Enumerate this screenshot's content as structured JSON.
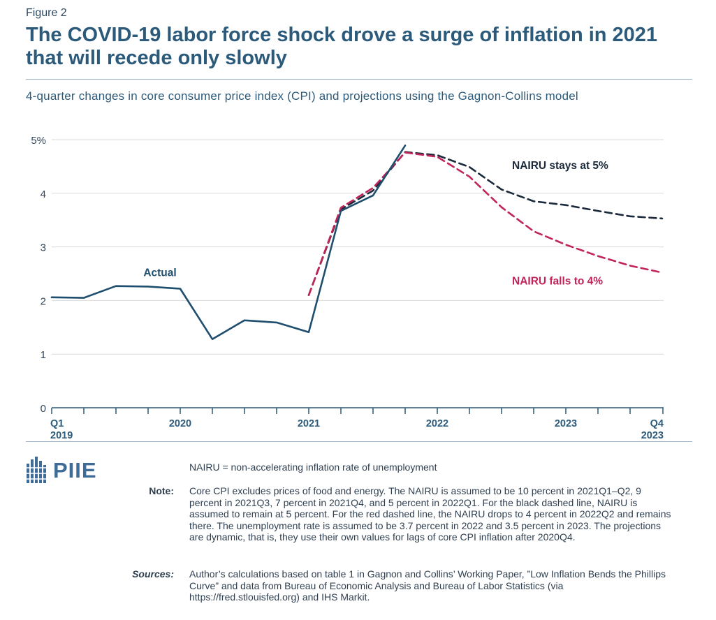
{
  "figure_label": "Figure 2",
  "title": "The COVID-19 labor force shock drove a surge of inflation in 2021 that will recede only slowly",
  "subtitle": "4-quarter changes in core consumer price index (CPI) and projections using the Gagnon-Collins model",
  "logo_text": "PIIE",
  "nairu_definition": "NAIRU = non-accelerating inflation rate of unemployment",
  "note": {
    "label": "Note:",
    "text": "Core CPI excludes prices of food and energy. The NAIRU is assumed to be 10 percent in 2021Q1–Q2, 9 percent in 2021Q3, 7 percent in 2021Q4, and 5 percent in 2022Q1. For the black dashed line, NAIRU is assumed to remain at 5 percent. For the red dashed line, the NAIRU drops to 4 percent in 2022Q2 and remains there. The unemployment rate is assumed to be 3.7 percent in 2022 and 3.5 percent in 2023. The projections are dynamic, that is, they use their own values for lags of core CPI inflation after 2020Q4."
  },
  "sources": {
    "label": "Sources:",
    "text": "Author’s calculations based on table 1 in Gagnon and Collins’ Working Paper, ”Low Inflation Bends the Phillips Curve” and data from Bureau of Economic Analysis and Bureau of Labor Statistics (via https://fred.stlouisfed.org) and IHS Markit."
  },
  "colors": {
    "actual": "#1f4e6e",
    "nairu5": "#1b2a3a",
    "nairu4": "#c0245a",
    "grid": "#d9d9d9",
    "axis": "#2c5a7a"
  },
  "chart_data": {
    "type": "line",
    "x_quarters": [
      "2019Q1",
      "2019Q2",
      "2019Q3",
      "2019Q4",
      "2020Q1",
      "2020Q2",
      "2020Q3",
      "2020Q4",
      "2021Q1",
      "2021Q2",
      "2021Q3",
      "2021Q4",
      "2022Q1",
      "2022Q2",
      "2022Q3",
      "2022Q4",
      "2023Q1",
      "2023Q2",
      "2023Q3",
      "2023Q4"
    ],
    "ylim": [
      0,
      5
    ],
    "yticks": [
      {
        "value": 0,
        "label": "0"
      },
      {
        "value": 1,
        "label": "1"
      },
      {
        "value": 2,
        "label": "2"
      },
      {
        "value": 3,
        "label": "3"
      },
      {
        "value": 4,
        "label": "4"
      },
      {
        "value": 5,
        "label": "5%"
      }
    ],
    "xtick_labels": [
      {
        "index": 0,
        "line1": "Q1",
        "line2": "2019"
      },
      {
        "index": 4,
        "line1": "2020",
        "line2": ""
      },
      {
        "index": 8,
        "line1": "2021",
        "line2": ""
      },
      {
        "index": 12,
        "line1": "2022",
        "line2": ""
      },
      {
        "index": 16,
        "line1": "2023",
        "line2": ""
      },
      {
        "index": 19,
        "line1": "Q4",
        "line2": "2023"
      }
    ],
    "series": [
      {
        "name": "Actual",
        "style": "solid",
        "color": "#1f4e6e",
        "start_index": 0,
        "values": [
          2.06,
          2.05,
          2.27,
          2.26,
          2.22,
          1.28,
          1.63,
          1.59,
          1.41,
          3.67,
          3.96,
          4.89
        ]
      },
      {
        "name": "NAIRU stays at 5%",
        "style": "dashed",
        "color": "#1b2a3a",
        "start_index": 8,
        "values": [
          2.1,
          3.7,
          4.05,
          4.77,
          4.71,
          4.49,
          4.07,
          3.85,
          3.78,
          3.67,
          3.57,
          3.53
        ]
      },
      {
        "name": "NAIRU falls to 4%",
        "style": "dashed",
        "color": "#c0245a",
        "start_index": 8,
        "values": [
          2.1,
          3.73,
          4.1,
          4.76,
          4.68,
          4.31,
          3.74,
          3.29,
          3.04,
          2.83,
          2.65,
          2.52
        ]
      }
    ],
    "annotations": [
      {
        "text": "Actual",
        "series": 0
      },
      {
        "text": "NAIRU stays at 5%",
        "series": 1
      },
      {
        "text": "NAIRU falls to 4%",
        "series": 2
      }
    ]
  }
}
